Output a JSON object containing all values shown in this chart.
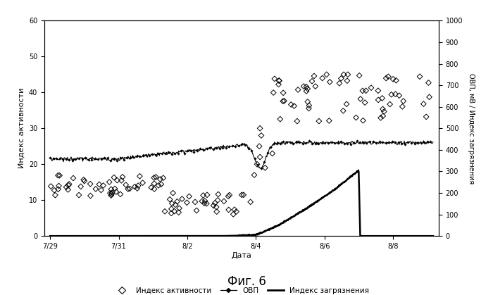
{
  "fig_title": "Фиг. 6",
  "xlabel": "Дата",
  "ylabel_left": "Индекс активности",
  "ylabel_right": "ОВП, мВ / Индекс загрязнения",
  "xtick_labels": [
    "7/29",
    "7/31",
    "8/2",
    "8/4",
    "8/6",
    "8/8"
  ],
  "ylim_left": [
    0,
    60
  ],
  "ylim_right": [
    0,
    1000
  ],
  "yticks_left": [
    0,
    10,
    20,
    30,
    40,
    50,
    60
  ],
  "yticks_right": [
    0,
    100,
    200,
    300,
    400,
    500,
    600,
    700,
    800,
    900,
    1000
  ],
  "legend_labels": [
    "Индекс активности",
    "ОВП",
    "Индекс загрязнения"
  ],
  "bg_color": "#ffffff"
}
